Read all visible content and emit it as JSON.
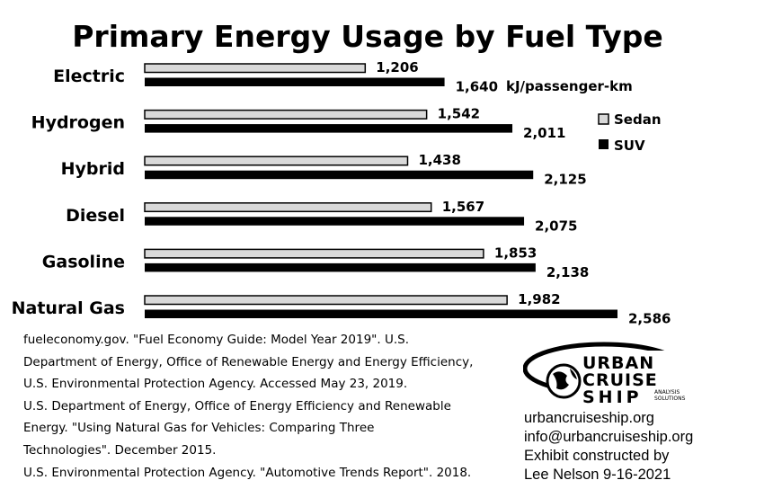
{
  "chart_data": {
    "type": "bar",
    "orientation": "horizontal",
    "title": "Primary Energy Usage by Fuel Type",
    "categories": [
      "Electric",
      "Hydrogen",
      "Hybrid",
      "Diesel",
      "Gasoline",
      "Natural Gas"
    ],
    "series": [
      {
        "name": "Sedan",
        "color": "#d9d9d9",
        "values": [
          1206,
          1542,
          1438,
          1567,
          1853,
          1982
        ],
        "value_labels": [
          "1,206",
          "1,542",
          "1,438",
          "1,567",
          "1,853",
          "1,982"
        ]
      },
      {
        "name": "SUV",
        "color": "#000000",
        "values": [
          1640,
          2011,
          2125,
          2075,
          2138,
          2586
        ],
        "value_labels": [
          "1,640",
          "2,011",
          "2,125",
          "2,075",
          "2,138",
          "2,586"
        ]
      }
    ],
    "unit": "kJ/passenger-km",
    "legend_position": "right",
    "grid": false,
    "xlim": [
      0,
      2586
    ]
  },
  "sources": [
    "fueleconomy.gov. \"Fuel Economy Guide: Model Year 2019\". U.S.",
    "Department of Energy, Office of Renewable Energy and Energy Efficiency,",
    "U.S. Environmental Protection Agency. Accessed May 23, 2019.",
    "U.S. Department of Energy, Office of Energy Efficiency and Renewable",
    "Energy. \"Using Natural Gas for Vehicles: Comparing Three",
    "Technologies\". December 2015.",
    "U.S. Environmental Protection Agency. \"Automotive Trends Report\". 2018."
  ],
  "logo": {
    "words": [
      "URBAN",
      "CRUISE",
      "SHIP"
    ],
    "tagline": [
      "ANALYSIS",
      "SOLUTIONS"
    ]
  },
  "contact": {
    "website": "urbancruiseship.org",
    "email": "info@urbancruiseship.org",
    "credit_line1": "Exhibit constructed by",
    "credit_line2": "Lee Nelson 9-16-2021"
  }
}
